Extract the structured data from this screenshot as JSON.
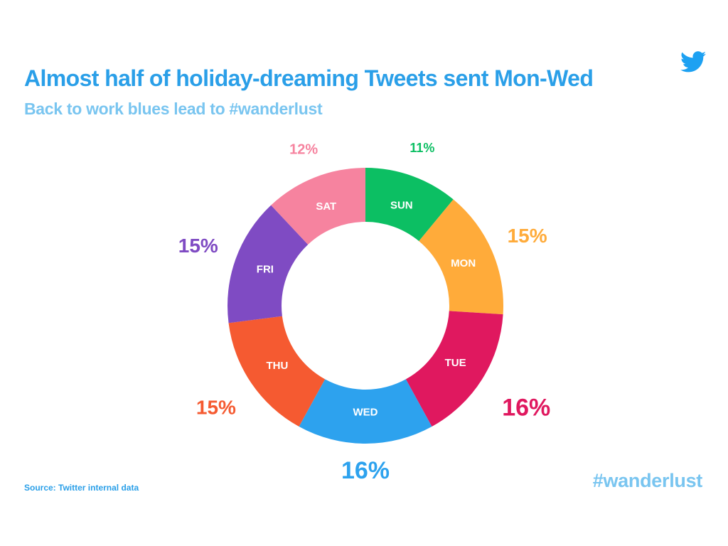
{
  "header": {
    "title": "Almost half of holiday-dreaming Tweets sent Mon-Wed",
    "subtitle": "Back to work blues lead to #wanderlust"
  },
  "footer": {
    "source": "Source: Twitter internal data",
    "hashtag": "#wanderlust"
  },
  "logo": {
    "icon": "twitter-bird-icon",
    "color": "#1da1f2"
  },
  "chart_data": {
    "type": "pie",
    "style": "donut",
    "title": "Almost half of holiday-dreaming Tweets sent Mon-Wed",
    "subtitle": "Back to work blues lead to #wanderlust",
    "start": "12 o'clock",
    "direction": "clockwise",
    "slices": [
      {
        "label": "SUN",
        "value": 11,
        "value_label": "11%",
        "color": "#0cbf63"
      },
      {
        "label": "MON",
        "value": 15,
        "value_label": "15%",
        "color": "#ffab3a"
      },
      {
        "label": "TUE",
        "value": 16,
        "value_label": "16%",
        "color": "#e0185f"
      },
      {
        "label": "WED",
        "value": 16,
        "value_label": "16%",
        "color": "#2da2ee"
      },
      {
        "label": "THU",
        "value": 15,
        "value_label": "15%",
        "color": "#f55a31"
      },
      {
        "label": "FRI",
        "value": 15,
        "value_label": "15%",
        "color": "#7f4bc3"
      },
      {
        "label": "SAT",
        "value": 12,
        "value_label": "12%",
        "color": "#f6839f"
      }
    ]
  }
}
